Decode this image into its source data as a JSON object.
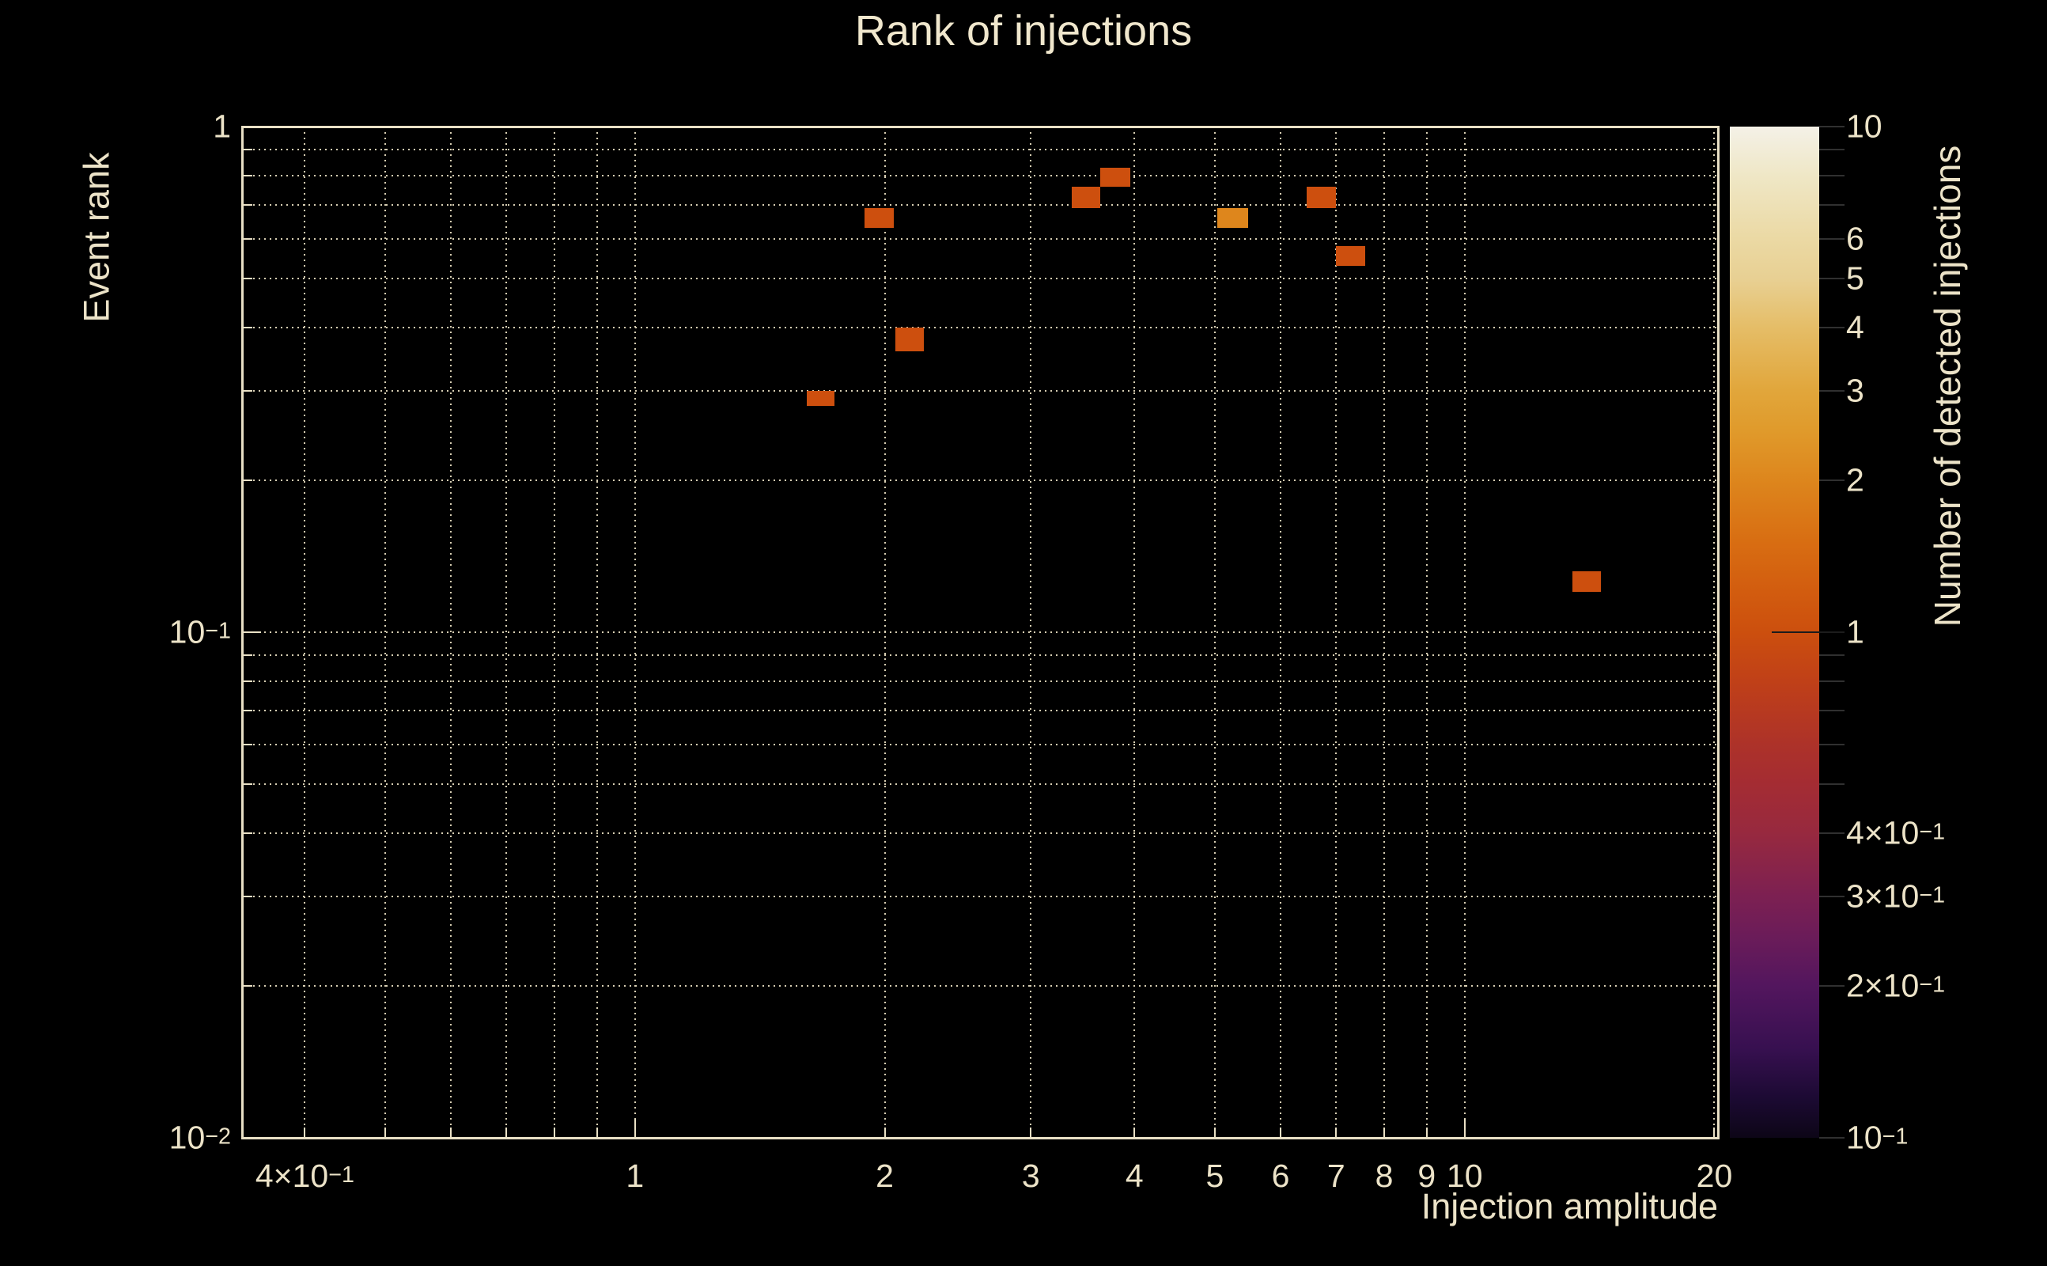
{
  "colors": {
    "background": "#000000",
    "foreground": "#ece3c8",
    "frame": "#e9e0c5",
    "grid": "#d6cdb2",
    "colorbar_tick": "#303030"
  },
  "chart_data": {
    "type": "heatmap",
    "title": "Rank of injections",
    "grid": true,
    "x_axis": {
      "title": "Injection amplitude",
      "scale": "log",
      "min": 0.336,
      "max": 20.2,
      "labeled_ticks": [
        {
          "value": 0.4,
          "label": "4×10^-1"
        },
        {
          "value": 1,
          "label": "1"
        },
        {
          "value": 2,
          "label": "2"
        },
        {
          "value": 3,
          "label": "3"
        },
        {
          "value": 4,
          "label": "4"
        },
        {
          "value": 5,
          "label": "5"
        },
        {
          "value": 6,
          "label": "6"
        },
        {
          "value": 7,
          "label": "7"
        },
        {
          "value": 8,
          "label": "8"
        },
        {
          "value": 9,
          "label": "9"
        },
        {
          "value": 10,
          "label": "10"
        },
        {
          "value": 20,
          "label": "20"
        }
      ]
    },
    "y_axis": {
      "title": "Event rank",
      "scale": "log",
      "min": 0.01,
      "max": 1.0,
      "labeled_ticks": [
        {
          "value": 1,
          "label": "1"
        },
        {
          "value": 0.1,
          "label": "10^-1"
        },
        {
          "value": 0.01,
          "label": "10^-2"
        }
      ]
    },
    "colorbar": {
      "title": "Number of detected injections",
      "scale": "log",
      "min": 0.1,
      "max": 10,
      "labeled_ticks": [
        {
          "value": 10,
          "label": "10"
        },
        {
          "value": 6,
          "label": "6"
        },
        {
          "value": 5,
          "label": "5"
        },
        {
          "value": 4,
          "label": "4"
        },
        {
          "value": 3,
          "label": "3"
        },
        {
          "value": 2,
          "label": "2"
        },
        {
          "value": 1,
          "label": "1"
        },
        {
          "value": 0.4,
          "label": "4×10^-1"
        },
        {
          "value": 0.3,
          "label": "3×10^-1"
        },
        {
          "value": 0.2,
          "label": "2×10^-1"
        },
        {
          "value": 0.1,
          "label": "10^-1"
        }
      ],
      "gradient_stops": [
        {
          "value": 10,
          "color": "#f4f1e7"
        },
        {
          "value": 8,
          "color": "#efe7c6"
        },
        {
          "value": 6,
          "color": "#ebd9a4"
        },
        {
          "value": 5,
          "color": "#e8d093"
        },
        {
          "value": 4,
          "color": "#e5bd67"
        },
        {
          "value": 3,
          "color": "#e1a63b"
        },
        {
          "value": 2.5,
          "color": "#e09a2b"
        },
        {
          "value": 2,
          "color": "#dd861d"
        },
        {
          "value": 1.5,
          "color": "#d86d12"
        },
        {
          "value": 1.2,
          "color": "#d25c0f"
        },
        {
          "value": 1,
          "color": "#cc4f0e"
        },
        {
          "value": 0.8,
          "color": "#c04018"
        },
        {
          "value": 0.6,
          "color": "#ad3229"
        },
        {
          "value": 0.5,
          "color": "#a42c33"
        },
        {
          "value": 0.4,
          "color": "#97293f"
        },
        {
          "value": 0.3,
          "color": "#7c2052"
        },
        {
          "value": 0.25,
          "color": "#6b1c59"
        },
        {
          "value": 0.2,
          "color": "#53165e"
        },
        {
          "value": 0.15,
          "color": "#371050"
        },
        {
          "value": 0.12,
          "color": "#1c0a33"
        },
        {
          "value": 0.1,
          "color": "#0d0617"
        }
      ]
    },
    "count_colors": {
      "1": "#cd4f0e",
      "2": "#de861c"
    },
    "bins": [
      {
        "x": [
          1.89,
          2.05
        ],
        "rank": [
          0.63,
          0.69
        ],
        "count": 1
      },
      {
        "x": [
          3.36,
          3.64
        ],
        "rank": [
          0.69,
          0.76
        ],
        "count": 1
      },
      {
        "x": [
          3.64,
          3.95
        ],
        "rank": [
          0.76,
          0.83
        ],
        "count": 1
      },
      {
        "x": [
          5.03,
          5.48
        ],
        "rank": [
          0.63,
          0.69
        ],
        "count": 2
      },
      {
        "x": [
          6.45,
          6.99
        ],
        "rank": [
          0.69,
          0.76
        ],
        "count": 1
      },
      {
        "x": [
          6.99,
          7.59
        ],
        "rank": [
          0.53,
          0.58
        ],
        "count": 1
      },
      {
        "x": [
          2.06,
          2.23
        ],
        "rank": [
          0.36,
          0.4
        ],
        "count": 1
      },
      {
        "x": [
          1.61,
          1.74
        ],
        "rank": [
          0.28,
          0.3
        ],
        "count": 1
      },
      {
        "x": [
          13.5,
          14.6
        ],
        "rank": [
          0.12,
          0.132
        ],
        "count": 1
      }
    ]
  }
}
